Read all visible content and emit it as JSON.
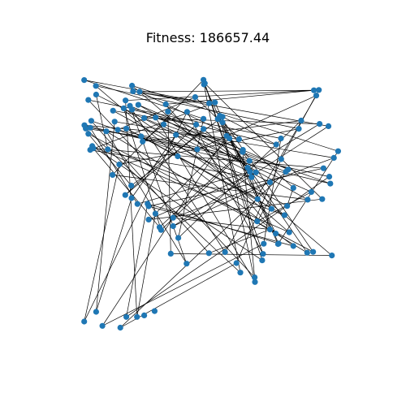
{
  "chart_data": {
    "type": "scatter",
    "title": "Fitness: 186657.44",
    "axes_visible": false,
    "grid": false,
    "xlim": [
      0,
      1
    ],
    "ylim": [
      0,
      1
    ],
    "node_color": "#1f77b4",
    "edge_color": "#000000",
    "series": [
      {
        "x": [
          0.021,
          0.044,
          0.027,
          0.037,
          0.044,
          0.112,
          0.13,
          0.156,
          0.179,
          0.202,
          0.203,
          0.226,
          0.265,
          0.269,
          0.269,
          0.363,
          0.363,
          0.317,
          0.311,
          0.295,
          0.383,
          0.354,
          0.415,
          0.501,
          0.563,
          0.607,
          0.622,
          0.677,
          0.678,
          0.706,
          0.709,
          0.712,
          0.769,
          0.767,
          0.758,
          0.742,
          0.792,
          0.802,
          0.881,
          0.895,
          0.937,
          0.968,
          0.964,
          0.942,
          0.982,
          0.998,
          0.961,
          0.927,
          0.914,
          0.924,
          0.905,
          0.856,
          0.847,
          0.778,
          0.76,
          0.779,
          0.806,
          0.797,
          0.826,
          0.736,
          0.665,
          0.659,
          0.657,
          0.632,
          0.617,
          0.569,
          0.553,
          0.543,
          0.535,
          0.48,
          0.452,
          0.48,
          0.456,
          0.381,
          0.374,
          0.327,
          0.343,
          0.335,
          0.252,
          0.234,
          0.209,
          0.173,
          0.205,
          0.18,
          0.15,
          0.106,
          0.056,
          0.052,
          0.048,
          0.022,
          0.037,
          0.067,
          0.066,
          0.132,
          0.138,
          0.183,
          0.197,
          0.205,
          0.229,
          0.24,
          0.246,
          0.296,
          0.417,
          0.448,
          0.482,
          0.485,
          0.48,
          0.502,
          0.524,
          0.553,
          0.58,
          0.631,
          0.65,
          0.682,
          0.688,
          0.687,
          0.736,
          0.81,
          0.826,
          0.879,
          0.902,
          0.974,
          0.021,
          0.067,
          0.091,
          0.16,
          0.183,
          0.224,
          0.252,
          0.292
        ],
        "y": [
          0.979,
          0.792,
          0.789,
          0.768,
          0.705,
          0.707,
          0.607,
          0.648,
          0.528,
          0.565,
          0.516,
          0.493,
          0.494,
          0.484,
          0.432,
          0.439,
          0.406,
          0.391,
          0.402,
          0.455,
          0.36,
          0.298,
          0.259,
          0.3,
          0.304,
          0.261,
          0.224,
          0.205,
          0.187,
          0.272,
          0.297,
          0.337,
          0.338,
          0.336,
          0.377,
          0.474,
          0.449,
          0.485,
          0.51,
          0.54,
          0.512,
          0.573,
          0.6,
          0.633,
          0.674,
          0.7,
          0.798,
          0.807,
          0.918,
          0.94,
          0.939,
          0.82,
          0.788,
          0.75,
          0.726,
          0.669,
          0.628,
          0.619,
          0.556,
          0.578,
          0.598,
          0.619,
          0.662,
          0.705,
          0.747,
          0.76,
          0.813,
          0.839,
          0.826,
          0.827,
          0.804,
          0.787,
          0.707,
          0.68,
          0.764,
          0.805,
          0.855,
          0.884,
          0.83,
          0.933,
          0.935,
          0.868,
          0.863,
          0.899,
          0.784,
          0.778,
          0.711,
          0.72,
          0.819,
          0.802,
          0.901,
          0.922,
          0.956,
          0.859,
          0.816,
          0.789,
          0.878,
          0.957,
          0.882,
          0.758,
          0.738,
          0.832,
          0.854,
          0.912,
          0.962,
          0.966,
          0.98,
          0.888,
          0.891,
          0.835,
          0.75,
          0.697,
          0.635,
          0.617,
          0.512,
          0.425,
          0.393,
          0.382,
          0.328,
          0.302,
          0.305,
          0.291,
          0.032,
          0.07,
          0.015,
          0.008,
          0.05,
          0.05,
          0.056,
          0.073
        ]
      }
    ],
    "edges": [
      [
        0,
        107
      ],
      [
        107,
        80
      ],
      [
        80,
        46
      ],
      [
        46,
        16
      ],
      [
        16,
        59
      ],
      [
        59,
        91
      ],
      [
        91,
        5
      ],
      [
        5,
        36
      ],
      [
        36,
        95
      ],
      [
        95,
        114
      ],
      [
        114,
        61
      ],
      [
        61,
        11
      ],
      [
        11,
        1
      ],
      [
        1,
        72
      ],
      [
        72,
        48
      ],
      [
        48,
        24
      ],
      [
        24,
        82
      ],
      [
        82,
        54
      ],
      [
        54,
        109
      ],
      [
        109,
        9
      ],
      [
        9,
        3
      ],
      [
        3,
        120
      ],
      [
        120,
        67
      ],
      [
        67,
        28
      ],
      [
        28,
        101
      ],
      [
        101,
        63
      ],
      [
        63,
        18
      ],
      [
        18,
        86
      ],
      [
        86,
        43
      ],
      [
        43,
        13
      ],
      [
        13,
        118
      ],
      [
        118,
        73
      ],
      [
        73,
        92
      ],
      [
        92,
        52
      ],
      [
        52,
        7
      ],
      [
        7,
        122
      ],
      [
        122,
        102
      ],
      [
        102,
        30
      ],
      [
        30,
        105
      ],
      [
        105,
        40
      ],
      [
        40,
        14
      ],
      [
        14,
        113
      ],
      [
        113,
        76
      ],
      [
        76,
        21
      ],
      [
        21,
        121
      ],
      [
        121,
        97
      ],
      [
        97,
        45
      ],
      [
        45,
        33
      ],
      [
        33,
        104
      ],
      [
        104,
        26
      ],
      [
        26,
        2
      ],
      [
        2,
        99
      ],
      [
        99,
        62
      ],
      [
        62,
        110
      ],
      [
        110,
        19
      ],
      [
        19,
        127
      ],
      [
        127,
        83
      ],
      [
        83,
        49
      ],
      [
        49,
        55
      ],
      [
        55,
        25
      ],
      [
        25,
        125
      ],
      [
        125,
        56
      ],
      [
        56,
        98
      ],
      [
        98,
        38
      ],
      [
        38,
        6
      ],
      [
        6,
        106
      ],
      [
        106,
        29
      ],
      [
        29,
        87
      ],
      [
        87,
        117
      ],
      [
        117,
        74
      ],
      [
        74,
        10
      ],
      [
        10,
        123
      ],
      [
        123,
        94
      ],
      [
        94,
        44
      ],
      [
        44,
        15
      ],
      [
        15,
        116
      ],
      [
        116,
        23
      ],
      [
        23,
        88
      ],
      [
        88,
        60
      ],
      [
        60,
        4
      ],
      [
        4,
        108
      ],
      [
        108,
        32
      ],
      [
        32,
        12
      ],
      [
        12,
        126
      ],
      [
        126,
        42
      ],
      [
        42,
        84
      ],
      [
        84,
        103
      ],
      [
        103,
        68
      ],
      [
        68,
        35
      ],
      [
        35,
        81
      ],
      [
        81,
        17
      ],
      [
        17,
        111
      ],
      [
        111,
        27
      ],
      [
        27,
        90
      ],
      [
        90,
        53
      ],
      [
        53,
        31
      ],
      [
        31,
        124
      ],
      [
        124,
        65
      ],
      [
        65,
        119
      ],
      [
        119,
        85
      ],
      [
        85,
        22
      ],
      [
        22,
        96
      ],
      [
        96,
        57
      ],
      [
        57,
        115
      ],
      [
        115,
        39
      ],
      [
        39,
        78
      ],
      [
        78,
        47
      ],
      [
        47,
        112
      ],
      [
        112,
        71
      ],
      [
        71,
        8
      ],
      [
        8,
        70
      ],
      [
        70,
        93
      ],
      [
        93,
        37
      ],
      [
        37,
        58
      ],
      [
        58,
        66
      ],
      [
        66,
        34
      ],
      [
        34,
        77
      ],
      [
        77,
        50
      ],
      [
        50,
        79
      ],
      [
        79,
        64
      ],
      [
        64,
        89
      ],
      [
        89,
        41
      ],
      [
        41,
        75
      ],
      [
        75,
        100
      ],
      [
        100,
        51
      ],
      [
        51,
        20
      ],
      [
        20,
        69
      ],
      [
        69,
        0
      ]
    ]
  }
}
